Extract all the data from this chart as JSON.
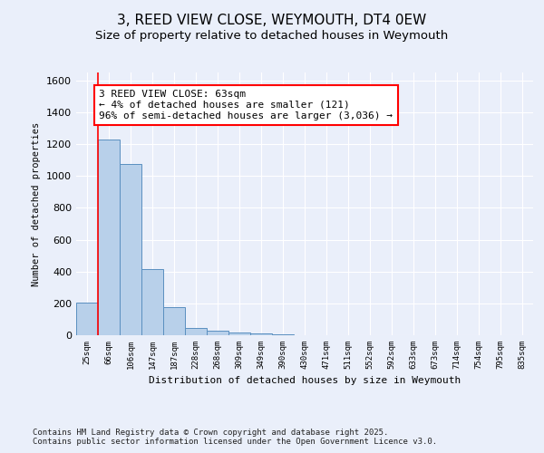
{
  "title": "3, REED VIEW CLOSE, WEYMOUTH, DT4 0EW",
  "subtitle": "Size of property relative to detached houses in Weymouth",
  "xlabel": "Distribution of detached houses by size in Weymouth",
  "ylabel": "Number of detached properties",
  "categories": [
    "25sqm",
    "66sqm",
    "106sqm",
    "147sqm",
    "187sqm",
    "228sqm",
    "268sqm",
    "309sqm",
    "349sqm",
    "390sqm",
    "430sqm",
    "471sqm",
    "511sqm",
    "552sqm",
    "592sqm",
    "633sqm",
    "673sqm",
    "714sqm",
    "754sqm",
    "795sqm",
    "835sqm"
  ],
  "values": [
    205,
    1230,
    1075,
    415,
    178,
    47,
    27,
    18,
    12,
    7,
    0,
    0,
    0,
    0,
    0,
    0,
    0,
    0,
    0,
    0,
    0
  ],
  "bar_color": "#b8d0ea",
  "bar_edge_color": "#5a8fc0",
  "vline_x": 0.5,
  "annotation_text": "3 REED VIEW CLOSE: 63sqm\n← 4% of detached houses are smaller (121)\n96% of semi-detached houses are larger (3,036) →",
  "annotation_box_color": "#ff0000",
  "ylim": [
    0,
    1650
  ],
  "yticks": [
    0,
    200,
    400,
    600,
    800,
    1000,
    1200,
    1400,
    1600
  ],
  "bg_color": "#eaeffa",
  "plot_bg_color": "#eaeffa",
  "footer": "Contains HM Land Registry data © Crown copyright and database right 2025.\nContains public sector information licensed under the Open Government Licence v3.0.",
  "title_fontsize": 11,
  "subtitle_fontsize": 9.5,
  "annotation_fontsize": 8,
  "footer_fontsize": 6.5
}
